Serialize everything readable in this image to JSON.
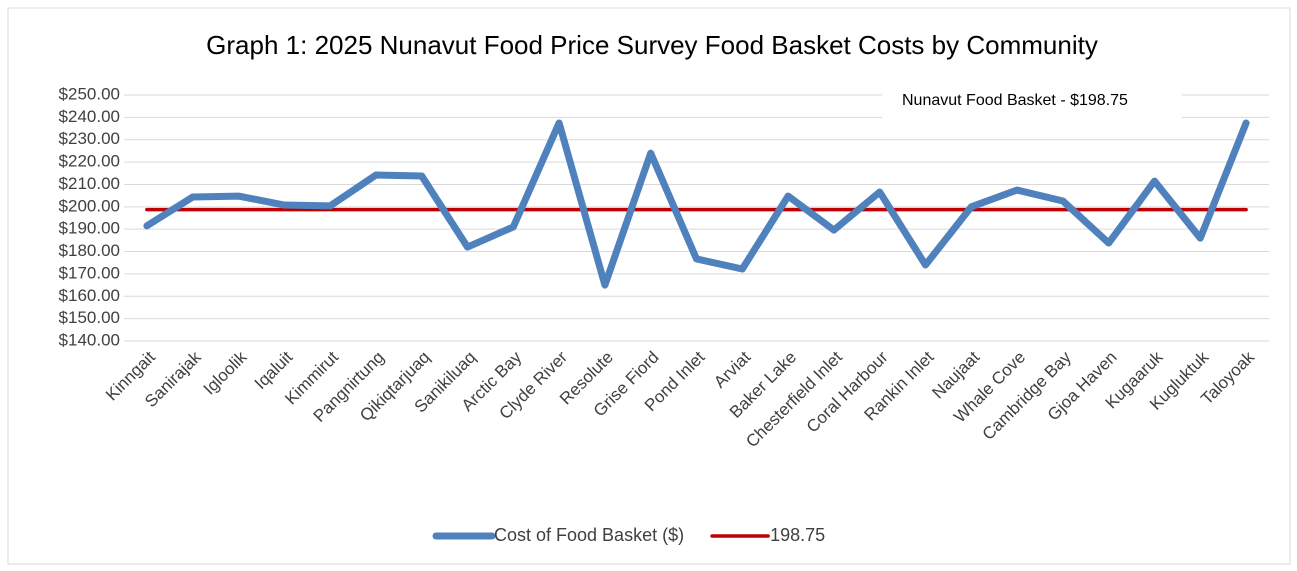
{
  "chart_data": {
    "type": "line",
    "title": "Graph 1: 2025 Nunavut Food Price Survey Food Basket Costs by Community",
    "annotation": "Nunavut Food Basket - $198.75",
    "categories": [
      "Kinngait",
      "Sanirajak",
      "Igloolik",
      "Iqaluit",
      "Kimmirut",
      "Pangnirtung",
      "Qikiqtarjuaq",
      "Sanikiluaq",
      "Arctic Bay",
      "Clyde River",
      "Resolute",
      "Grise Fiord",
      "Pond Inlet",
      "Arviat",
      "Baker Lake",
      "Chesterfield Inlet",
      "Coral Harbour",
      "Rankin Inlet",
      "Naujaat",
      "Whale Cove",
      "Cambridge Bay",
      "Gjoa Haven",
      "Kugaaruk",
      "Kugluktuk",
      "Taloyoak"
    ],
    "series": [
      {
        "name": "Cost of Food Basket ($)",
        "color": "#4f81bd",
        "values": [
          191.5,
          204.4,
          204.8,
          200.8,
          200.4,
          214.2,
          213.8,
          182,
          191,
          237.5,
          165,
          224,
          176.7,
          172.2,
          204.8,
          189.6,
          206.6,
          174,
          200,
          207.5,
          202.6,
          183.8,
          211.5,
          186,
          237.5
        ]
      },
      {
        "name": "198.75",
        "color": "#c00000",
        "values": [
          198.75,
          198.75,
          198.75,
          198.75,
          198.75,
          198.75,
          198.75,
          198.75,
          198.75,
          198.75,
          198.75,
          198.75,
          198.75,
          198.75,
          198.75,
          198.75,
          198.75,
          198.75,
          198.75,
          198.75,
          198.75,
          198.75,
          198.75,
          198.75,
          198.75
        ]
      }
    ],
    "ylim": [
      140,
      250
    ],
    "yticks": [
      {
        "value": 140,
        "label": "$140.00"
      },
      {
        "value": 150,
        "label": "$150.00"
      },
      {
        "value": 160,
        "label": "$160.00"
      },
      {
        "value": 170,
        "label": "$170.00"
      },
      {
        "value": 180,
        "label": "$180.00"
      },
      {
        "value": 190,
        "label": "$190.00"
      },
      {
        "value": 200,
        "label": "$200.00"
      },
      {
        "value": 210,
        "label": "$210.00"
      },
      {
        "value": 220,
        "label": "$220.00"
      },
      {
        "value": 230,
        "label": "$230.00"
      },
      {
        "value": 240,
        "label": "$240.00"
      },
      {
        "value": 250,
        "label": "$250.00"
      }
    ],
    "grid": true,
    "legend": "bottom"
  }
}
